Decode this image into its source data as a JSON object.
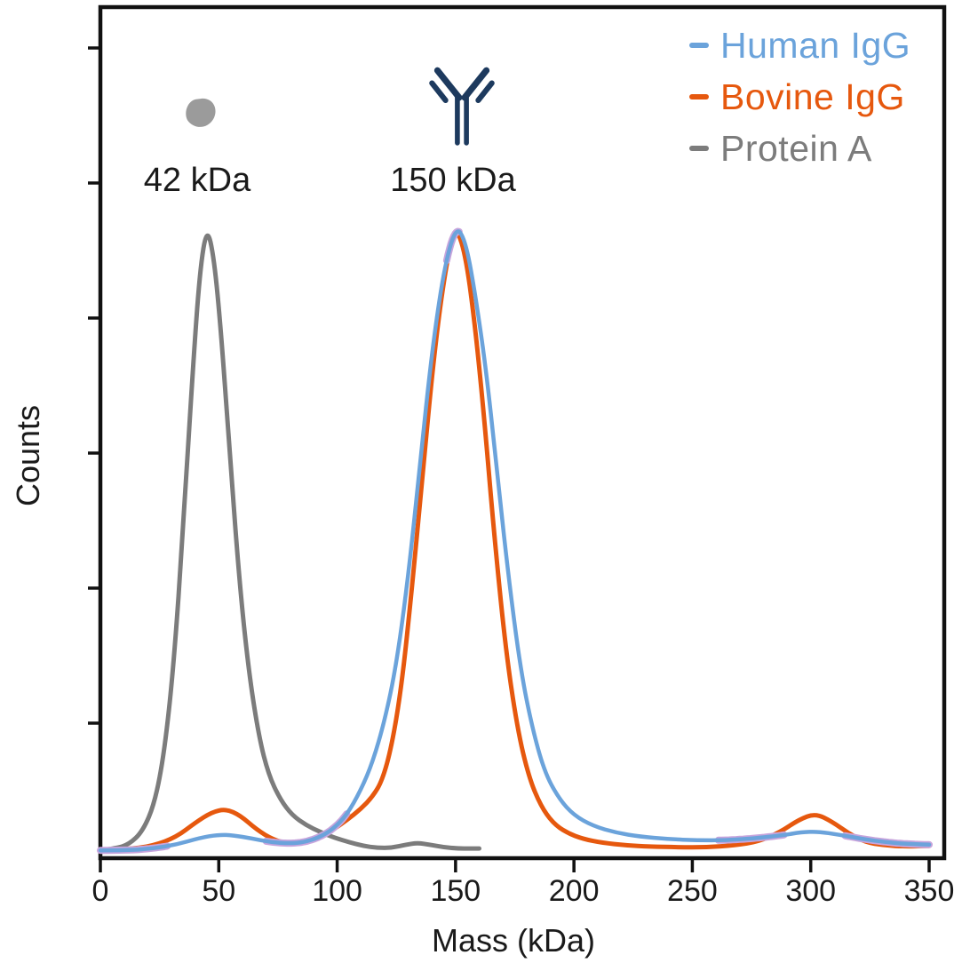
{
  "chart_data": {
    "type": "line",
    "title": "",
    "xlabel": "Mass (kDa)",
    "ylabel": "Counts",
    "xlim": [
      0,
      350
    ],
    "x_ticks": [
      0,
      50,
      100,
      150,
      200,
      250,
      300,
      350
    ],
    "ylim": [
      0,
      1.07
    ],
    "y_axis": {
      "tick_count": 6,
      "tick_labels_visible": false,
      "units": "relative counts (axis unlabeled)"
    },
    "grid": false,
    "legend_position": "top-right",
    "legend": [
      {
        "label": "Human IgG",
        "color": "#6BA3DB"
      },
      {
        "label": "Bovine IgG",
        "color": "#E6580E"
      },
      {
        "label": "Protein A",
        "color": "#7C7C7C"
      }
    ],
    "annotations": [
      {
        "text": "42 kDa",
        "x": 42,
        "icon": "protein-a-blob-icon"
      },
      {
        "text": "150 kDa",
        "x": 150,
        "icon": "antibody-icon"
      }
    ],
    "icon_colors": {
      "antibody": "#1D3A5E",
      "protein_a_blob": "#9B9B9B"
    },
    "overlap_blend_color": "#C7A4DC",
    "series": [
      {
        "name": "Human IgG",
        "color": "#6BA3DB",
        "peaks_kda": [
          52,
          150,
          300
        ],
        "points": [
          [
            0,
            0.004
          ],
          [
            12,
            0.004
          ],
          [
            22,
            0.007
          ],
          [
            32,
            0.013
          ],
          [
            42,
            0.024
          ],
          [
            50,
            0.029
          ],
          [
            56,
            0.028
          ],
          [
            64,
            0.023
          ],
          [
            72,
            0.017
          ],
          [
            80,
            0.015
          ],
          [
            86,
            0.017
          ],
          [
            92,
            0.024
          ],
          [
            98,
            0.037
          ],
          [
            104,
            0.06
          ],
          [
            110,
            0.1
          ],
          [
            115,
            0.145
          ],
          [
            120,
            0.21
          ],
          [
            125,
            0.3
          ],
          [
            130,
            0.44
          ],
          [
            135,
            0.62
          ],
          [
            140,
            0.8
          ],
          [
            145,
            0.93
          ],
          [
            150,
            1.0
          ],
          [
            154,
            0.98
          ],
          [
            158,
            0.9
          ],
          [
            163,
            0.77
          ],
          [
            168,
            0.59
          ],
          [
            173,
            0.42
          ],
          [
            178,
            0.28
          ],
          [
            183,
            0.19
          ],
          [
            188,
            0.125
          ],
          [
            194,
            0.085
          ],
          [
            200,
            0.06
          ],
          [
            208,
            0.043
          ],
          [
            218,
            0.032
          ],
          [
            228,
            0.026
          ],
          [
            240,
            0.022
          ],
          [
            252,
            0.02
          ],
          [
            264,
            0.02
          ],
          [
            276,
            0.023
          ],
          [
            288,
            0.028
          ],
          [
            296,
            0.033
          ],
          [
            303,
            0.034
          ],
          [
            312,
            0.029
          ],
          [
            322,
            0.022
          ],
          [
            332,
            0.017
          ],
          [
            341,
            0.014
          ],
          [
            350,
            0.013
          ]
        ]
      },
      {
        "name": "Bovine IgG",
        "color": "#E6580E",
        "peaks_kda": [
          53,
          150,
          302
        ],
        "points": [
          [
            0,
            0.004
          ],
          [
            12,
            0.006
          ],
          [
            22,
            0.011
          ],
          [
            32,
            0.025
          ],
          [
            40,
            0.048
          ],
          [
            47,
            0.065
          ],
          [
            53,
            0.07
          ],
          [
            59,
            0.06
          ],
          [
            66,
            0.037
          ],
          [
            73,
            0.021
          ],
          [
            80,
            0.014
          ],
          [
            86,
            0.016
          ],
          [
            92,
            0.024
          ],
          [
            98,
            0.036
          ],
          [
            104,
            0.052
          ],
          [
            110,
            0.07
          ],
          [
            115,
            0.09
          ],
          [
            119,
            0.115
          ],
          [
            123,
            0.17
          ],
          [
            127,
            0.26
          ],
          [
            131,
            0.4
          ],
          [
            136,
            0.6
          ],
          [
            141,
            0.8
          ],
          [
            146,
            0.94
          ],
          [
            150,
            1.0
          ],
          [
            154,
            0.96
          ],
          [
            158,
            0.85
          ],
          [
            162,
            0.7
          ],
          [
            166,
            0.52
          ],
          [
            171,
            0.33
          ],
          [
            176,
            0.2
          ],
          [
            181,
            0.12
          ],
          [
            186,
            0.075
          ],
          [
            191,
            0.048
          ],
          [
            197,
            0.032
          ],
          [
            204,
            0.022
          ],
          [
            212,
            0.016
          ],
          [
            222,
            0.012
          ],
          [
            232,
            0.01
          ],
          [
            244,
            0.009
          ],
          [
            256,
            0.009
          ],
          [
            268,
            0.012
          ],
          [
            278,
            0.018
          ],
          [
            287,
            0.033
          ],
          [
            295,
            0.053
          ],
          [
            302,
            0.063
          ],
          [
            309,
            0.05
          ],
          [
            316,
            0.031
          ],
          [
            323,
            0.017
          ],
          [
            331,
            0.012
          ],
          [
            340,
            0.01
          ],
          [
            350,
            0.011
          ]
        ]
      },
      {
        "name": "Protein A",
        "color": "#7C7C7C",
        "peaks_kda": [
          45,
          132
        ],
        "points": [
          [
            0,
            0.004
          ],
          [
            6,
            0.007
          ],
          [
            12,
            0.013
          ],
          [
            18,
            0.035
          ],
          [
            23,
            0.08
          ],
          [
            27,
            0.16
          ],
          [
            31,
            0.3
          ],
          [
            35,
            0.52
          ],
          [
            39,
            0.77
          ],
          [
            42,
            0.93
          ],
          [
            45,
            1.0
          ],
          [
            48,
            0.95
          ],
          [
            51,
            0.83
          ],
          [
            55,
            0.62
          ],
          [
            59,
            0.42
          ],
          [
            63,
            0.28
          ],
          [
            67,
            0.185
          ],
          [
            71,
            0.125
          ],
          [
            76,
            0.085
          ],
          [
            81,
            0.06
          ],
          [
            87,
            0.044
          ],
          [
            93,
            0.033
          ],
          [
            99,
            0.024
          ],
          [
            105,
            0.017
          ],
          [
            111,
            0.011
          ],
          [
            117,
            0.008
          ],
          [
            123,
            0.008
          ],
          [
            129,
            0.013
          ],
          [
            134,
            0.016
          ],
          [
            139,
            0.013
          ],
          [
            145,
            0.009
          ],
          [
            151,
            0.007
          ],
          [
            156,
            0.007
          ],
          [
            160,
            0.007
          ]
        ]
      }
    ]
  }
}
